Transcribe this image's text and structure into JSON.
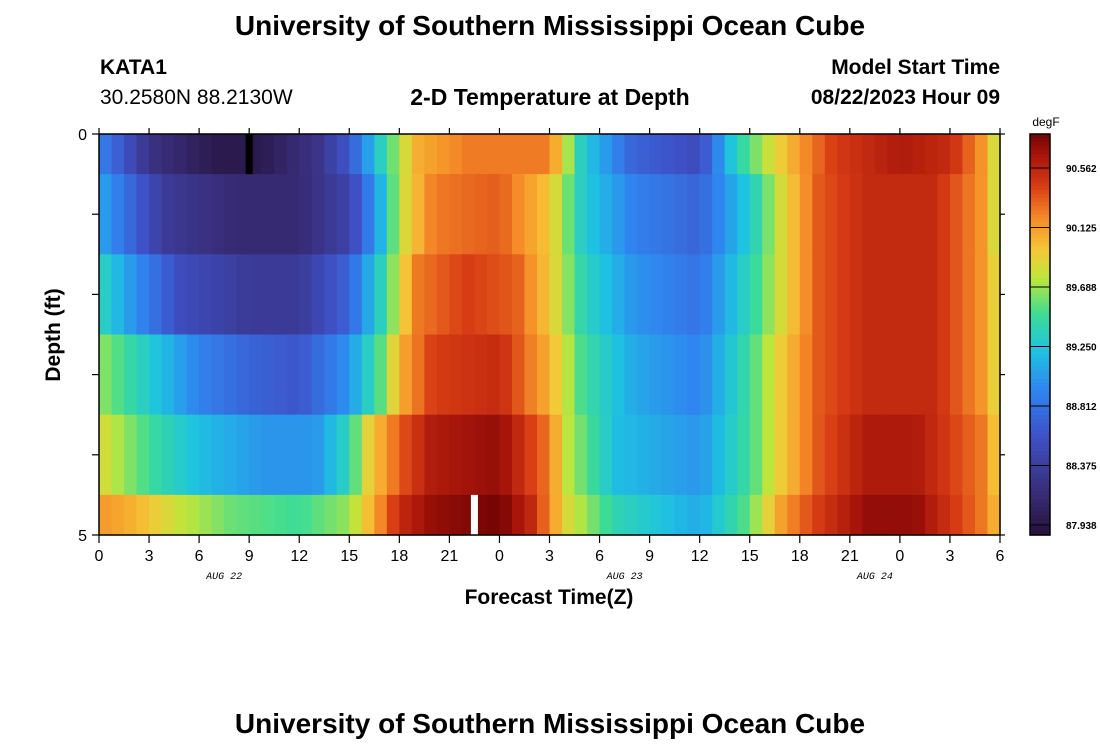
{
  "header": {
    "title": "University of Southern Mississippi Ocean Cube",
    "station_id": "KATA1",
    "station_coords": "30.2580N  88.2130W",
    "plot_title": "2-D Temperature at Depth",
    "model_start_label": "Model Start Time",
    "model_start_value": "08/22/2023 Hour 09"
  },
  "footer": {
    "title": "University of Southern Mississippi Ocean Cube"
  },
  "chart_data": {
    "type": "heatmap",
    "title": "2-D Temperature at Depth",
    "xlabel": "Forecast Time(Z)",
    "ylabel": "Depth (ft)",
    "ylim": [
      0,
      5
    ],
    "x_tick_labels": [
      "0",
      "3",
      "6",
      "9",
      "12",
      "15",
      "18",
      "21",
      "0",
      "3",
      "6",
      "9",
      "12",
      "15",
      "18",
      "21",
      "0",
      "3",
      "6"
    ],
    "y_tick_labels": [
      "0",
      "5"
    ],
    "date_labels": [
      {
        "text": "AUG 22",
        "tick_index": 2.5
      },
      {
        "text": "AUG 23",
        "tick_index": 10.5
      },
      {
        "text": "AUG 24",
        "tick_index": 15.5
      }
    ],
    "colorbar": {
      "unit": "degF",
      "min": 87.8,
      "max": 90.9,
      "tick_labels": [
        "90.562",
        "90.125",
        "89.688",
        "89.250",
        "88.812",
        "88.375",
        "87.938"
      ]
    },
    "hours_per_col": 0.75,
    "bands": [
      {
        "depth_from": 0,
        "depth_to": 0.5,
        "knots": [
          [
            0,
            88.9
          ],
          [
            1,
            88.7
          ],
          [
            3,
            88.2
          ],
          [
            7,
            87.9
          ],
          [
            9.5,
            87.9
          ],
          [
            13,
            88.2
          ],
          [
            15,
            88.6
          ],
          [
            17,
            89.4
          ],
          [
            19,
            90.1
          ],
          [
            22,
            90.3
          ],
          [
            27,
            90.3
          ],
          [
            29,
            89.3
          ],
          [
            32,
            88.7
          ],
          [
            36,
            88.5
          ],
          [
            38,
            89.3
          ],
          [
            40,
            89.8
          ],
          [
            42,
            90.2
          ],
          [
            44,
            90.5
          ],
          [
            48,
            90.7
          ],
          [
            51,
            90.6
          ],
          [
            53,
            90.2
          ],
          [
            54,
            89.7
          ]
        ],
        "extreme_mark": {
          "type": "min",
          "hour": 9,
          "color": "#000000"
        }
      },
      {
        "depth_from": 0.5,
        "depth_to": 1.5,
        "knots": [
          [
            0,
            89.1
          ],
          [
            2,
            88.7
          ],
          [
            4,
            88.3
          ],
          [
            8,
            88.1
          ],
          [
            12,
            88.1
          ],
          [
            15,
            88.4
          ],
          [
            17,
            89.2
          ],
          [
            18,
            89.8
          ],
          [
            20,
            90.3
          ],
          [
            24,
            90.4
          ],
          [
            27,
            90.0
          ],
          [
            29,
            89.3
          ],
          [
            32,
            88.9
          ],
          [
            36,
            88.7
          ],
          [
            39,
            89.3
          ],
          [
            41,
            89.9
          ],
          [
            43,
            90.4
          ],
          [
            46,
            90.6
          ],
          [
            50,
            90.6
          ],
          [
            53,
            90.2
          ],
          [
            54,
            89.7
          ]
        ]
      },
      {
        "depth_from": 1.5,
        "depth_to": 2.5,
        "knots": [
          [
            0,
            89.4
          ],
          [
            2,
            89.0
          ],
          [
            5,
            88.5
          ],
          [
            9,
            88.3
          ],
          [
            12,
            88.3
          ],
          [
            15,
            88.7
          ],
          [
            17,
            89.4
          ],
          [
            19,
            90.3
          ],
          [
            22,
            90.5
          ],
          [
            25,
            90.4
          ],
          [
            27,
            90.0
          ],
          [
            29,
            89.4
          ],
          [
            32,
            89.0
          ],
          [
            36,
            88.8
          ],
          [
            39,
            89.4
          ],
          [
            41,
            89.9
          ],
          [
            43,
            90.4
          ],
          [
            46,
            90.6
          ],
          [
            50,
            90.6
          ],
          [
            53,
            90.2
          ],
          [
            54,
            89.8
          ]
        ]
      },
      {
        "depth_from": 2.5,
        "depth_to": 3.5,
        "knots": [
          [
            0,
            89.7
          ],
          [
            3,
            89.3
          ],
          [
            6,
            88.9
          ],
          [
            9,
            88.7
          ],
          [
            12,
            88.6
          ],
          [
            15,
            89.0
          ],
          [
            17,
            89.6
          ],
          [
            18,
            90.1
          ],
          [
            20,
            90.5
          ],
          [
            24,
            90.6
          ],
          [
            27,
            90.1
          ],
          [
            29,
            89.5
          ],
          [
            32,
            89.1
          ],
          [
            36,
            88.9
          ],
          [
            39,
            89.5
          ],
          [
            41,
            90.0
          ],
          [
            43,
            90.4
          ],
          [
            46,
            90.6
          ],
          [
            50,
            90.6
          ],
          [
            53,
            90.2
          ],
          [
            54,
            89.8
          ]
        ]
      },
      {
        "depth_from": 3.5,
        "depth_to": 4.5,
        "knots": [
          [
            0,
            89.9
          ],
          [
            3,
            89.5
          ],
          [
            6,
            89.2
          ],
          [
            10,
            89.0
          ],
          [
            13,
            89.0
          ],
          [
            15,
            89.4
          ],
          [
            16,
            89.9
          ],
          [
            18,
            90.4
          ],
          [
            20,
            90.7
          ],
          [
            24,
            90.8
          ],
          [
            27,
            90.3
          ],
          [
            28,
            89.8
          ],
          [
            31,
            89.2
          ],
          [
            36,
            89.0
          ],
          [
            39,
            89.5
          ],
          [
            41,
            90.0
          ],
          [
            43,
            90.4
          ],
          [
            46,
            90.7
          ],
          [
            49,
            90.7
          ],
          [
            53,
            90.3
          ],
          [
            54,
            89.9
          ]
        ]
      },
      {
        "depth_from": 4.5,
        "depth_to": 5,
        "knots": [
          [
            0,
            90.2
          ],
          [
            2,
            90.1
          ],
          [
            5,
            89.8
          ],
          [
            8,
            89.6
          ],
          [
            12,
            89.5
          ],
          [
            15,
            89.7
          ],
          [
            16,
            90.0
          ],
          [
            18,
            90.6
          ],
          [
            20,
            90.8
          ],
          [
            24,
            90.9
          ],
          [
            26,
            90.6
          ],
          [
            28,
            89.9
          ],
          [
            31,
            89.4
          ],
          [
            36,
            89.1
          ],
          [
            39,
            89.6
          ],
          [
            41,
            90.2
          ],
          [
            43,
            90.5
          ],
          [
            46,
            90.8
          ],
          [
            49,
            90.8
          ],
          [
            53,
            90.3
          ],
          [
            54,
            90.0
          ]
        ],
        "extreme_mark": {
          "type": "max",
          "hour": 22.5,
          "color": "#ffffff"
        }
      }
    ]
  }
}
